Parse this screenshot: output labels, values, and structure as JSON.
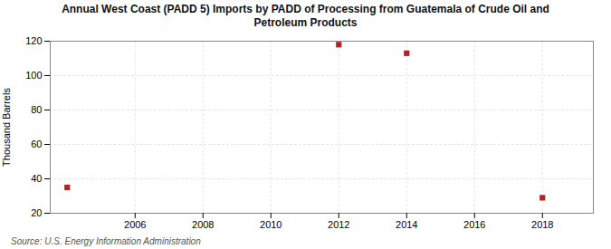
{
  "chart_data": {
    "type": "scatter",
    "title": "Annual West Coast (PADD 5) Imports by PADD of Processing from Guatemala of Crude Oil and\nPetroleum Products",
    "ylabel": "Thousand Barrels",
    "source": "Source: U.S. Energy Information Administration",
    "x": [
      2004,
      2012,
      2014,
      2018
    ],
    "values": [
      35,
      118,
      113,
      29
    ],
    "color": "#b22222",
    "marker": "square",
    "xlim": [
      2003.5,
      2019.5
    ],
    "ylim": [
      20,
      120
    ],
    "xticks": [
      2006,
      2008,
      2010,
      2012,
      2014,
      2016,
      2018
    ],
    "yticks": [
      20,
      40,
      60,
      80,
      100,
      120
    ],
    "grid": true
  }
}
